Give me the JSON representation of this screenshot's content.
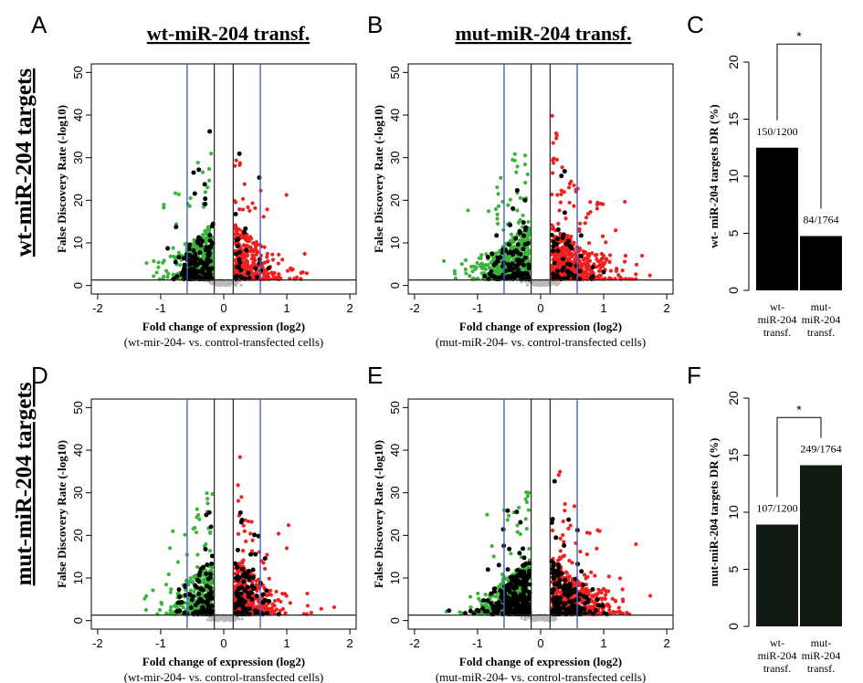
{
  "row_labels": [
    "wt-miR-204 targets",
    "mut-miR-204 targets"
  ],
  "column_titles": [
    "wt-miR-204 transf.",
    "mut-miR-204 transf."
  ],
  "panel_letters": [
    "A",
    "B",
    "C",
    "D",
    "E",
    "F"
  ],
  "chart_data": [
    {
      "panel": "A",
      "type": "scatter",
      "title": "",
      "xlabel": "Fold change of expression (log2)",
      "xlabel_sub": "(wt-mir-204- vs. control-transfected cells)",
      "ylabel": "False Discovery Rate (-log10)",
      "xlim": [
        -2.1,
        2.1
      ],
      "ylim": [
        -2,
        52
      ],
      "xticks": [
        -2,
        -1,
        0,
        1,
        2
      ],
      "yticks": [
        0,
        10,
        20,
        30,
        40,
        50
      ],
      "xtick_labels": [
        "-2",
        "-1",
        "0",
        "1",
        "2"
      ],
      "ytick_labels": [
        "0",
        "10",
        "20",
        "30",
        "40",
        "50"
      ],
      "vlines_black": [
        -0.15,
        0.15
      ],
      "vlines_blue": [
        -0.58,
        0.58
      ],
      "hline": 1.3,
      "colors": {
        "down": "#3cb33c",
        "up": "#ee2020",
        "target": "#000000",
        "ns": "#bbbbbb",
        "threshold": "#4a5fc9"
      },
      "seed": 11,
      "n_green": 420,
      "n_red": 420,
      "n_black_left": 150,
      "n_black_right": 30,
      "spread": 1.0
    },
    {
      "panel": "B",
      "type": "scatter",
      "title": "",
      "xlabel": "Fold change of expression (log2)",
      "xlabel_sub": "(mut-miR-204- vs. control-transfected cells)",
      "ylabel": "False Discovery Rate (-log10)",
      "xlim": [
        -2.1,
        2.1
      ],
      "ylim": [
        -2,
        52
      ],
      "xticks": [
        -2,
        -1,
        0,
        1,
        2
      ],
      "yticks": [
        0,
        10,
        20,
        30,
        40,
        50
      ],
      "xtick_labels": [
        "-2",
        "-1",
        "0",
        "1",
        "2"
      ],
      "ytick_labels": [
        "0",
        "10",
        "20",
        "30",
        "40",
        "50"
      ],
      "vlines_black": [
        -0.15,
        0.15
      ],
      "vlines_blue": [
        -0.58,
        0.58
      ],
      "hline": 1.3,
      "colors": {
        "down": "#3cb33c",
        "up": "#ee2020",
        "target": "#000000",
        "ns": "#bbbbbb",
        "threshold": "#4a5fc9"
      },
      "seed": 23,
      "n_green": 650,
      "n_red": 650,
      "n_black_left": 110,
      "n_black_right": 50,
      "spread": 1.25
    },
    {
      "panel": "C",
      "type": "bar",
      "title": "",
      "ylabel": "wt- miR-204 targets DR (%)",
      "categories": [
        "wt-\nmiR-204\ntransf.",
        "mut-\nmiR-204\ntransf."
      ],
      "values": [
        12.5,
        4.76
      ],
      "bar_labels": [
        "150/1200",
        "84/1764"
      ],
      "ylim": [
        0,
        20
      ],
      "yticks": [
        0,
        5,
        10,
        15,
        20
      ],
      "ytick_labels": [
        "0",
        "5",
        "10",
        "15",
        "20"
      ],
      "significance": "*",
      "bar_color": "#000000"
    },
    {
      "panel": "D",
      "type": "scatter",
      "title": "",
      "xlabel": "Fold change of expression (log2)",
      "xlabel_sub": "(wt-mir-204- vs. control-transfected cells)",
      "ylabel": "False Discovery Rate (-log10)",
      "xlim": [
        -2.1,
        2.1
      ],
      "ylim": [
        -2,
        52
      ],
      "xticks": [
        -2,
        -1,
        0,
        1,
        2
      ],
      "yticks": [
        0,
        10,
        20,
        30,
        40,
        50
      ],
      "xtick_labels": [
        "-2",
        "-1",
        "0",
        "1",
        "2"
      ],
      "ytick_labels": [
        "0",
        "10",
        "20",
        "30",
        "40",
        "50"
      ],
      "vlines_black": [
        -0.15,
        0.15
      ],
      "vlines_blue": [
        -0.58,
        0.58
      ],
      "hline": 1.3,
      "colors": {
        "down": "#3cb33c",
        "up": "#ee2020",
        "target": "#000000",
        "ns": "#bbbbbb",
        "threshold": "#4a5fc9"
      },
      "seed": 37,
      "n_green": 420,
      "n_red": 420,
      "n_black_left": 110,
      "n_black_right": 110,
      "spread": 1.0
    },
    {
      "panel": "E",
      "type": "scatter",
      "title": "",
      "xlabel": "Fold change of expression (log2)",
      "xlabel_sub": "(mut-miR-204- vs. control-transfected cells)",
      "ylabel": "False Discovery Rate (-log10)",
      "xlim": [
        -2.1,
        2.1
      ],
      "ylim": [
        -2,
        52
      ],
      "xticks": [
        -2,
        -1,
        0,
        1,
        2
      ],
      "yticks": [
        0,
        10,
        20,
        30,
        40,
        50
      ],
      "xtick_labels": [
        "-2",
        "-1",
        "0",
        "1",
        "2"
      ],
      "ytick_labels": [
        "0",
        "10",
        "20",
        "30",
        "40",
        "50"
      ],
      "vlines_black": [
        -0.15,
        0.15
      ],
      "vlines_blue": [
        -0.58,
        0.58
      ],
      "hline": 1.3,
      "colors": {
        "down": "#3cb33c",
        "up": "#ee2020",
        "target": "#000000",
        "ns": "#bbbbbb",
        "threshold": "#4a5fc9"
      },
      "seed": 53,
      "n_green": 600,
      "n_red": 650,
      "n_black_left": 260,
      "n_black_right": 170,
      "spread": 1.25
    },
    {
      "panel": "F",
      "type": "bar",
      "title": "",
      "ylabel": "mut-miR-204 targets DR (%)",
      "categories": [
        "wt-\nmiR-204\ntransf.",
        "mut-\nmiR-204\ntransf."
      ],
      "values": [
        8.92,
        14.12
      ],
      "bar_labels": [
        "107/1200",
        "249/1764"
      ],
      "ylim": [
        0,
        20
      ],
      "yticks": [
        0,
        5,
        10,
        15,
        20
      ],
      "ytick_labels": [
        "0",
        "5",
        "10",
        "15",
        "20"
      ],
      "significance": "*",
      "bar_color": "#111a11"
    }
  ]
}
